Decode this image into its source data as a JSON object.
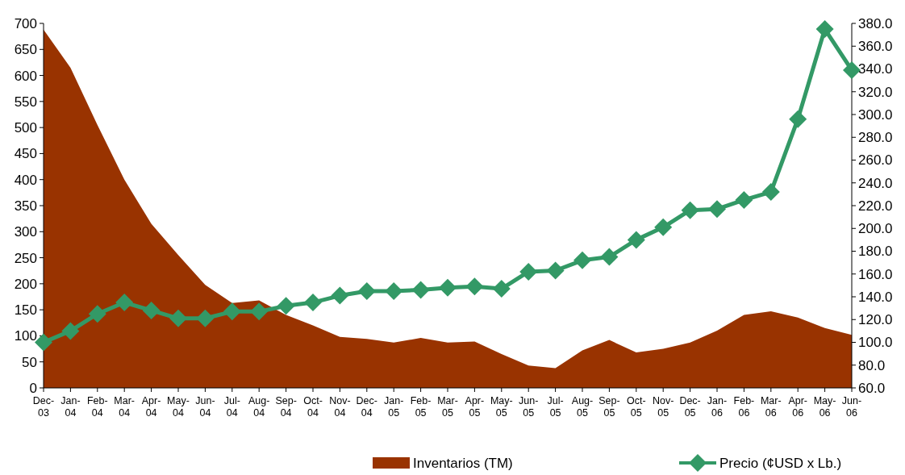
{
  "chart_data": {
    "type": "area",
    "categories": [
      "Dec-03",
      "Jan-04",
      "Feb-04",
      "Mar-04",
      "Apr-04",
      "May-04",
      "Jun-04",
      "Jul-04",
      "Aug-04",
      "Sep-04",
      "Oct-04",
      "Nov-04",
      "Dec-04",
      "Jan-05",
      "Feb-05",
      "Mar-05",
      "Apr-05",
      "May-05",
      "Jun-05",
      "Jul-05",
      "Aug-05",
      "Sep-05",
      "Oct-05",
      "Nov-05",
      "Dec-05",
      "Jan-06",
      "Feb-06",
      "Mar-06",
      "Apr-06",
      "May-06",
      "Jun-06"
    ],
    "series": [
      {
        "name": "Inventarios (TM)",
        "color": "#993300",
        "values": [
          688,
          615,
          505,
          400,
          315,
          255,
          198,
          163,
          168,
          140,
          120,
          98,
          94,
          87,
          96,
          87,
          89,
          65,
          43,
          38,
          72,
          92,
          68,
          75,
          87,
          110,
          140,
          147,
          135,
          115,
          102
        ]
      },
      {
        "name": "Precio (¢USD x Lb.)",
        "type": "line",
        "axis": "y2",
        "color": "#339966",
        "marker": "diamond",
        "values": [
          100,
          110,
          125,
          135,
          128,
          121,
          121,
          127,
          127,
          132,
          135,
          141,
          145,
          145,
          146,
          148,
          149,
          147,
          162,
          163,
          172,
          175,
          190,
          201,
          216,
          217,
          225,
          232,
          296,
          375,
          339
        ]
      }
    ],
    "ylim": [
      0,
      700
    ],
    "yticks": [
      0,
      50,
      100,
      150,
      200,
      250,
      300,
      350,
      400,
      450,
      500,
      550,
      600,
      650,
      700
    ],
    "y2lim": [
      60,
      380
    ],
    "y2ticks": [
      {
        "value": 60,
        "label": "60.0"
      },
      {
        "value": 80,
        "label": "80.0"
      },
      {
        "value": 100,
        "label": "100.0"
      },
      {
        "value": 120,
        "label": "120.0"
      },
      {
        "value": 140,
        "label": "140.0"
      },
      {
        "value": 160,
        "label": "160.0"
      },
      {
        "value": 180,
        "label": "180.0"
      },
      {
        "value": 200,
        "label": "200.0"
      },
      {
        "value": 220,
        "label": "220.0"
      },
      {
        "value": 240,
        "label": "240.0"
      },
      {
        "value": 260,
        "label": "260.0"
      },
      {
        "value": 280,
        "label": "280.0"
      },
      {
        "value": 300,
        "label": "300.0"
      },
      {
        "value": 320,
        "label": "320.0"
      },
      {
        "value": 340,
        "label": "340.0"
      },
      {
        "value": 360,
        "label": "360.0"
      },
      {
        "value": 380,
        "label": "380.0"
      }
    ],
    "legend": "bottom",
    "grid": false
  }
}
